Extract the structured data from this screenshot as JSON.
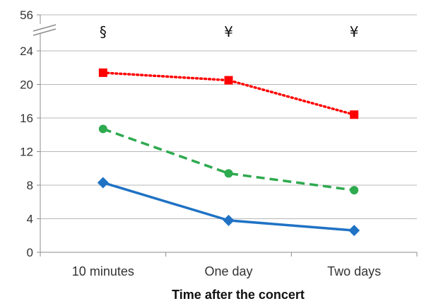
{
  "chart_data": {
    "type": "line",
    "categories": [
      "10 minutes",
      "One day",
      "Two days"
    ],
    "xlabel": "Time after the concert",
    "ylabel": "",
    "ylim": [
      0,
      24
    ],
    "yticks": [
      0,
      4,
      8,
      12,
      16,
      20,
      24
    ],
    "axis_break": {
      "top_tick_label": "56"
    },
    "annotations": [
      "§",
      "¥",
      "¥"
    ],
    "grid": true,
    "series": [
      {
        "values": [
          21.4,
          20.5,
          16.4
        ],
        "color": "#ff0000",
        "line_style": "dotted",
        "marker": "square"
      },
      {
        "values": [
          14.7,
          9.4,
          7.4
        ],
        "color": "#2eaa4f",
        "line_style": "dashed",
        "marker": "circle"
      },
      {
        "values": [
          8.3,
          3.8,
          2.6
        ],
        "color": "#1f72c4",
        "line_style": "solid",
        "marker": "diamond"
      }
    ]
  }
}
